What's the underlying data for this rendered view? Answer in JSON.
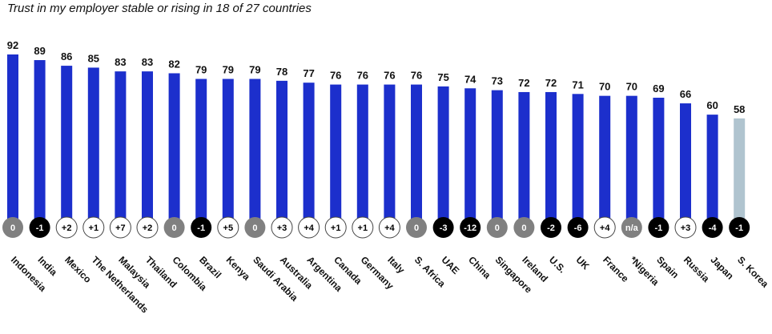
{
  "chart_data": {
    "type": "bar",
    "title": "Trust in my employer stable or rising in 18 of 27 countries",
    "xlabel": "",
    "ylabel": "",
    "ylim": [
      0,
      100
    ],
    "categories": [
      "Indonesia",
      "India",
      "Mexico",
      "The Netherlands",
      "Malaysia",
      "Thailand",
      "Colombia",
      "Brazil",
      "Kenya",
      "Saudi Arabia",
      "Australia",
      "Argentina",
      "Canada",
      "Germany",
      "Italy",
      "S. Africa",
      "UAE",
      "China",
      "Singapore",
      "Ireland",
      "U.S.",
      "UK",
      "France",
      "*Nigeria",
      "Spain",
      "Russia",
      "Japan",
      "S. Korea"
    ],
    "values": [
      92,
      89,
      86,
      85,
      83,
      83,
      82,
      79,
      79,
      79,
      78,
      77,
      76,
      76,
      76,
      76,
      75,
      74,
      73,
      72,
      72,
      71,
      70,
      70,
      69,
      66,
      60,
      58
    ],
    "changes": [
      "0",
      "-1",
      "+2",
      "+1",
      "+7",
      "+2",
      "0",
      "-1",
      "+5",
      "0",
      "+3",
      "+4",
      "+1",
      "+1",
      "+4",
      "0",
      "-3",
      "-12",
      "0",
      "0",
      "-2",
      "-6",
      "+4",
      "n/a",
      "-1",
      "+3",
      "-4",
      "-1"
    ],
    "bar_colors": {
      "default": "#1c2fcc",
      "highlight": "#b0c4cf"
    },
    "highlight_category": "S. Korea",
    "change_colors": {
      "unchanged_fill": "#808080",
      "unchanged_text": "#ffffff",
      "increase_fill": "#ffffff",
      "increase_text": "#000000",
      "decrease_fill": "#000000",
      "decrease_text": "#ffffff",
      "na_fill": "#808080",
      "na_text": "#ffffff"
    }
  }
}
